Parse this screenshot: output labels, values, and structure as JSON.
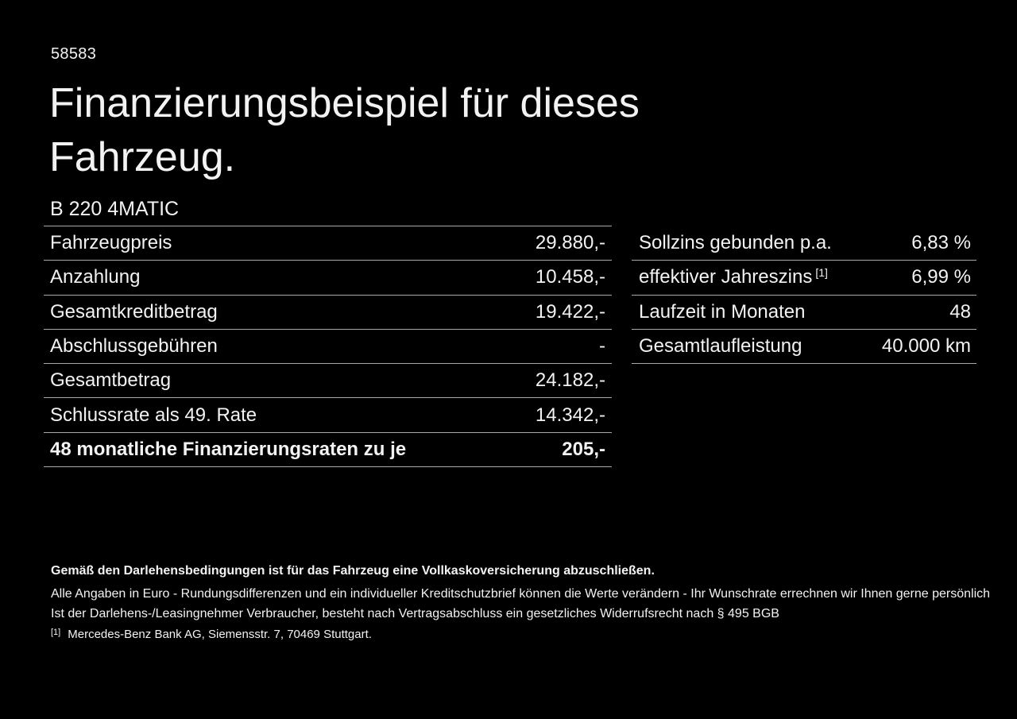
{
  "page": {
    "background": "#000000",
    "text_color": "#f2f2f2",
    "border_color": "#a8a8a8"
  },
  "header": {
    "reference_number": "58583",
    "title_line1": "Finanzierungsbeispiel für dieses",
    "title_line2": "Fahrzeug.",
    "vehicle_model": "B 220 4MATIC"
  },
  "financing_table": {
    "rows": [
      {
        "label": "Fahrzeugpreis",
        "value": "29.880,-"
      },
      {
        "label": "Anzahlung",
        "value": "10.458,-"
      },
      {
        "label": "Gesamtkreditbetrag",
        "value": "19.422,-"
      },
      {
        "label": "Abschlussgebühren",
        "value": "-"
      },
      {
        "label": "Gesamtbetrag",
        "value": "24.182,-"
      },
      {
        "label": "Schlussrate als 49. Rate",
        "value": "14.342,-"
      },
      {
        "label": "48 monatliche Finanzierungsraten zu je",
        "value": "205,-"
      }
    ]
  },
  "conditions_table": {
    "rows": [
      {
        "label": "Sollzins gebunden p.a.",
        "superscript": "",
        "value": "6,83 %"
      },
      {
        "label": "effektiver Jahreszins",
        "superscript": "[1]",
        "value": "6,99 %"
      },
      {
        "label": "Laufzeit in Monaten",
        "superscript": "",
        "value": "48"
      },
      {
        "label": "Gesamtlaufleistung",
        "superscript": "",
        "value": "40.000 km"
      }
    ]
  },
  "footer": {
    "insurance_note": "Gemäß den Darlehensbedingungen ist für das Fahrzeug eine Vollkaskoversicherung abzuschließen.",
    "disclaimer_line1": "Alle Angaben in Euro - Rundungsdifferenzen und ein individueller Kreditschutzbrief können die Werte verändern - Ihr Wunschrate errechnen wir Ihnen gerne persönlich",
    "disclaimer_line2": "Ist der Darlehens-/Leasingnehmer Verbraucher, besteht nach Vertragsabschluss ein gesetzliches Widerrufsrecht nach § 495 BGB",
    "footnote_marker": "[1]",
    "footnote_text": "Mercedes-Benz Bank AG, Siemensstr. 7, 70469 Stuttgart."
  }
}
